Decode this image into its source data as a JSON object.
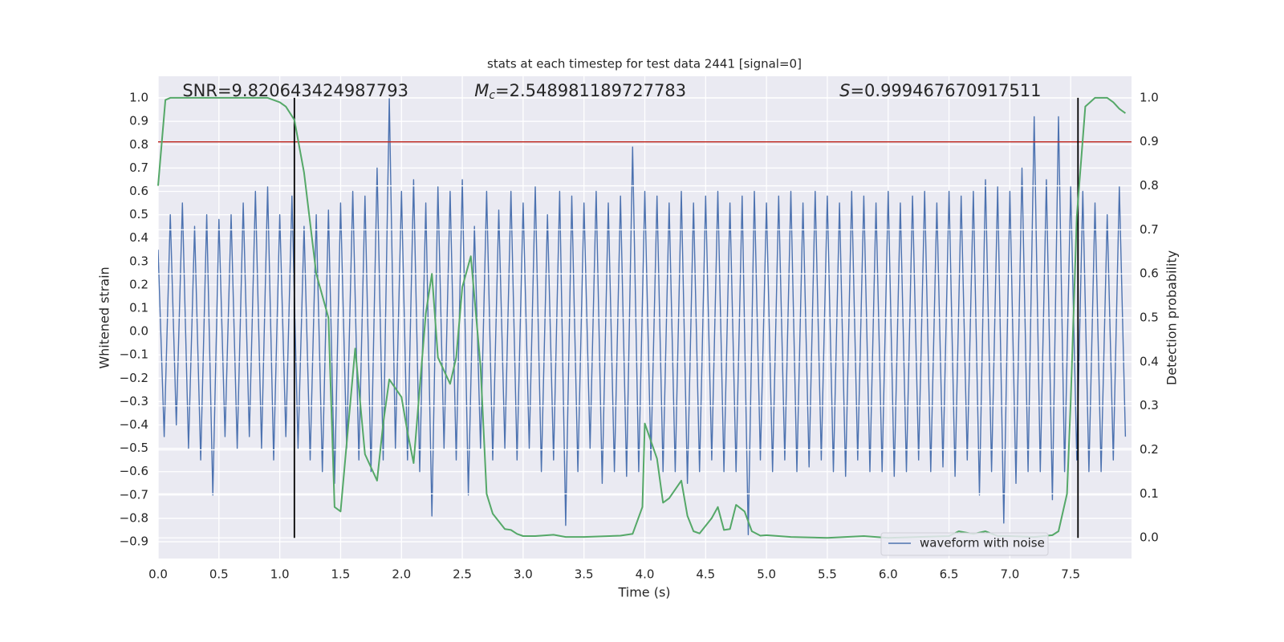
{
  "chart_data": {
    "type": "line",
    "title": "stats at each timestep for test data 2441 [signal=0]",
    "xlabel": "Time (s)",
    "ylabel": "Whitened strain",
    "y2label": "Detection probability",
    "annotations": [
      {
        "text": "SNR=9.820643424987793",
        "x": 0.2
      },
      {
        "symbol": "M",
        "sub": "c",
        "text": "=2.548981189727783",
        "x": 2.6
      },
      {
        "symbol": "S",
        "text": "=0.999467670917511",
        "x": 5.6
      }
    ],
    "xlim": [
      0,
      8
    ],
    "ylim": [
      -0.972,
      1.093
    ],
    "y2lim": [
      -0.047,
      1.049
    ],
    "xticks": [
      {
        "value": 0,
        "label": "0.0"
      },
      {
        "value": 0.5,
        "label": "0.5"
      },
      {
        "value": 1,
        "label": "1.0"
      },
      {
        "value": 1.5,
        "label": "1.5"
      },
      {
        "value": 2,
        "label": "2.0"
      },
      {
        "value": 2.5,
        "label": "2.5"
      },
      {
        "value": 3,
        "label": "3.0"
      },
      {
        "value": 3.5,
        "label": "3.5"
      },
      {
        "value": 4,
        "label": "4.0"
      },
      {
        "value": 4.5,
        "label": "4.5"
      },
      {
        "value": 5,
        "label": "5.0"
      },
      {
        "value": 5.5,
        "label": "5.5"
      },
      {
        "value": 6,
        "label": "6.0"
      },
      {
        "value": 6.5,
        "label": "6.5"
      },
      {
        "value": 7,
        "label": "7.0"
      },
      {
        "value": 7.5,
        "label": "7.5"
      }
    ],
    "yticks": [
      {
        "value": -0.9,
        "label": "−0.9"
      },
      {
        "value": -0.8,
        "label": "−0.8"
      },
      {
        "value": -0.7,
        "label": "−0.7"
      },
      {
        "value": -0.6,
        "label": "−0.6"
      },
      {
        "value": -0.5,
        "label": "−0.5"
      },
      {
        "value": -0.4,
        "label": "−0.4"
      },
      {
        "value": -0.3,
        "label": "−0.3"
      },
      {
        "value": -0.2,
        "label": "−0.2"
      },
      {
        "value": -0.1,
        "label": "−0.1"
      },
      {
        "value": 0,
        "label": "0.0"
      },
      {
        "value": 0.1,
        "label": "0.1"
      },
      {
        "value": 0.2,
        "label": "0.2"
      },
      {
        "value": 0.3,
        "label": "0.3"
      },
      {
        "value": 0.4,
        "label": "0.4"
      },
      {
        "value": 0.5,
        "label": "0.5"
      },
      {
        "value": 0.6,
        "label": "0.6"
      },
      {
        "value": 0.7,
        "label": "0.7"
      },
      {
        "value": 0.8,
        "label": "0.8"
      },
      {
        "value": 0.9,
        "label": "0.9"
      },
      {
        "value": 1,
        "label": "1.0"
      }
    ],
    "y2ticks": [
      {
        "value": 0,
        "label": "0.0"
      },
      {
        "value": 0.1,
        "label": "0.1"
      },
      {
        "value": 0.2,
        "label": "0.2"
      },
      {
        "value": 0.3,
        "label": "0.3"
      },
      {
        "value": 0.4,
        "label": "0.4"
      },
      {
        "value": 0.5,
        "label": "0.5"
      },
      {
        "value": 0.6,
        "label": "0.6"
      },
      {
        "value": 0.7,
        "label": "0.7"
      },
      {
        "value": 0.8,
        "label": "0.8"
      },
      {
        "value": 0.9,
        "label": "0.9"
      },
      {
        "value": 1,
        "label": "1.0"
      }
    ],
    "grid": true,
    "legend": "lower right",
    "hlines": [
      {
        "y": 0.9,
        "axis": "y2",
        "color": "#c03028"
      }
    ],
    "vlines": [
      {
        "x": 1.12,
        "ymin": 0,
        "ymax": 1,
        "axis": "y2",
        "color": "#000000"
      },
      {
        "x": 7.56,
        "ymin": 0,
        "ymax": 1,
        "axis": "y2",
        "color": "#000000"
      }
    ],
    "series": [
      {
        "name": "waveform with noise",
        "color": "#4c72b0",
        "x": [
          0,
          0.05,
          0.1,
          0.15,
          0.2,
          0.25,
          0.3,
          0.35,
          0.4,
          0.45,
          0.5,
          0.55,
          0.6,
          0.65,
          0.7,
          0.75,
          0.8,
          0.85,
          0.9,
          0.95,
          1,
          1.05,
          1.1,
          1.15,
          1.2,
          1.25,
          1.3,
          1.35,
          1.4,
          1.45,
          1.5,
          1.55,
          1.6,
          1.65,
          1.7,
          1.75,
          1.8,
          1.85,
          1.9,
          1.95,
          2,
          2.05,
          2.1,
          2.15,
          2.2,
          2.25,
          2.3,
          2.35,
          2.4,
          2.45,
          2.5,
          2.55,
          2.6,
          2.65,
          2.7,
          2.75,
          2.8,
          2.85,
          2.9,
          2.95,
          3,
          3.05,
          3.1,
          3.15,
          3.2,
          3.25,
          3.3,
          3.35,
          3.4,
          3.45,
          3.5,
          3.55,
          3.6,
          3.65,
          3.7,
          3.75,
          3.8,
          3.85,
          3.9,
          3.95,
          4,
          4.05,
          4.1,
          4.15,
          4.2,
          4.25,
          4.3,
          4.35,
          4.4,
          4.45,
          4.5,
          4.55,
          4.6,
          4.65,
          4.7,
          4.75,
          4.8,
          4.85,
          4.9,
          4.95,
          5,
          5.05,
          5.1,
          5.15,
          5.2,
          5.25,
          5.3,
          5.35,
          5.4,
          5.45,
          5.5,
          5.55,
          5.6,
          5.65,
          5.7,
          5.75,
          5.8,
          5.85,
          5.9,
          5.95,
          6,
          6.05,
          6.1,
          6.15,
          6.2,
          6.25,
          6.3,
          6.35,
          6.4,
          6.45,
          6.5,
          6.55,
          6.6,
          6.65,
          6.7,
          6.75,
          6.8,
          6.85,
          6.9,
          6.95,
          7,
          7.05,
          7.1,
          7.15,
          7.2,
          7.25,
          7.3,
          7.35,
          7.4,
          7.45,
          7.5,
          7.55,
          7.6,
          7.65,
          7.7,
          7.75,
          7.8,
          7.85,
          7.9,
          7.95
        ],
        "values": [
          0.35,
          -0.45,
          0.5,
          -0.4,
          0.55,
          -0.5,
          0.45,
          -0.55,
          0.5,
          -0.7,
          0.48,
          -0.45,
          0.5,
          -0.5,
          0.55,
          -0.45,
          0.6,
          -0.5,
          0.62,
          -0.55,
          0.5,
          -0.45,
          0.58,
          -0.5,
          0.45,
          -0.55,
          0.5,
          -0.6,
          0.52,
          -0.65,
          0.55,
          -0.5,
          0.6,
          -0.55,
          0.58,
          -0.6,
          0.7,
          -0.55,
          1.0,
          -0.5,
          0.6,
          -0.55,
          0.65,
          -0.6,
          0.55,
          -0.79,
          0.62,
          -0.5,
          0.6,
          -0.55,
          0.65,
          -0.7,
          0.45,
          -0.5,
          0.6,
          -0.55,
          0.52,
          -0.5,
          0.6,
          -0.55,
          0.55,
          -0.5,
          0.62,
          -0.6,
          0.5,
          -0.55,
          0.6,
          -0.83,
          0.58,
          -0.6,
          0.55,
          -0.5,
          0.6,
          -0.65,
          0.55,
          -0.6,
          0.58,
          -0.62,
          0.79,
          -0.6,
          0.6,
          -0.55,
          0.58,
          -0.6,
          0.55,
          -0.6,
          0.6,
          -0.65,
          0.55,
          -0.6,
          0.58,
          -0.55,
          0.6,
          -0.6,
          0.55,
          -0.6,
          0.58,
          -0.87,
          0.6,
          -0.55,
          0.55,
          -0.6,
          0.58,
          -0.55,
          0.6,
          -0.6,
          0.55,
          -0.58,
          0.6,
          -0.55,
          0.58,
          -0.6,
          0.55,
          -0.62,
          0.6,
          -0.55,
          0.58,
          -0.6,
          0.55,
          -0.6,
          0.6,
          -0.62,
          0.55,
          -0.6,
          0.58,
          -0.55,
          0.6,
          -0.6,
          0.55,
          -0.58,
          0.6,
          -0.62,
          0.58,
          -0.55,
          0.6,
          -0.7,
          0.65,
          -0.6,
          0.62,
          -0.82,
          0.6,
          -0.65,
          0.7,
          -0.6,
          0.92,
          -0.6,
          0.65,
          -0.72,
          0.92,
          -0.6,
          0.62,
          -0.55,
          0.6,
          -0.6,
          0.55,
          -0.6,
          0.5,
          -0.55,
          0.62,
          -0.45
        ]
      },
      {
        "color": "#55a868",
        "axis": "y2",
        "x": [
          0,
          0.06,
          0.1,
          0.3,
          0.6,
          0.9,
          1.0,
          1.05,
          1.12,
          1.2,
          1.3,
          1.4,
          1.45,
          1.5,
          1.62,
          1.7,
          1.8,
          1.85,
          1.9,
          2.0,
          2.05,
          2.1,
          2.2,
          2.25,
          2.3,
          2.4,
          2.45,
          2.5,
          2.57,
          2.65,
          2.7,
          2.75,
          2.85,
          2.9,
          2.95,
          3.0,
          3.1,
          3.25,
          3.35,
          3.5,
          3.8,
          3.9,
          3.98,
          4.0,
          4.1,
          4.15,
          4.2,
          4.3,
          4.35,
          4.4,
          4.45,
          4.55,
          4.6,
          4.65,
          4.7,
          4.75,
          4.82,
          4.88,
          4.95,
          5.0,
          5.2,
          5.5,
          5.8,
          6.0,
          6.5,
          6.58,
          6.7,
          6.8,
          6.9,
          7.0,
          7.2,
          7.35,
          7.4,
          7.47,
          7.5,
          7.55,
          7.62,
          7.7,
          7.8,
          7.85,
          7.9,
          7.95
        ],
        "values": [
          0.8,
          0.995,
          1.0,
          1.0,
          1.0,
          1.0,
          0.99,
          0.98,
          0.95,
          0.83,
          0.6,
          0.5,
          0.07,
          0.06,
          0.43,
          0.19,
          0.13,
          0.26,
          0.36,
          0.32,
          0.24,
          0.17,
          0.51,
          0.6,
          0.41,
          0.35,
          0.41,
          0.57,
          0.64,
          0.39,
          0.1,
          0.055,
          0.02,
          0.018,
          0.009,
          0.004,
          0.004,
          0.007,
          0.002,
          0.002,
          0.005,
          0.009,
          0.07,
          0.26,
          0.18,
          0.08,
          0.09,
          0.13,
          0.05,
          0.015,
          0.01,
          0.045,
          0.07,
          0.018,
          0.02,
          0.075,
          0.06,
          0.015,
          0.005,
          0.006,
          0.002,
          0.0,
          0.004,
          0.0,
          0.004,
          0.015,
          0.009,
          0.015,
          0.004,
          0.004,
          0.002,
          0.006,
          0.015,
          0.1,
          0.31,
          0.73,
          0.98,
          1.0,
          1.0,
          0.99,
          0.975,
          0.965
        ]
      }
    ]
  }
}
